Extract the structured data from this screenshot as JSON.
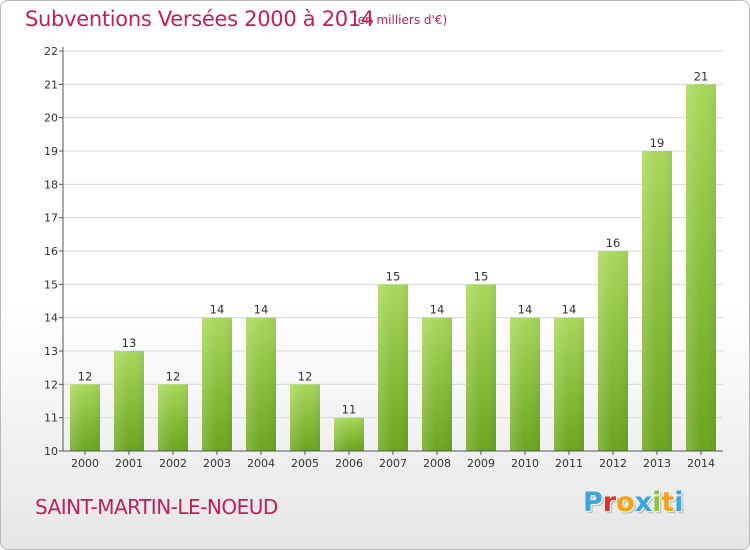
{
  "header": {
    "title": "Subventions Versées 2000 à 2014",
    "subtitle": "(en milliers d'€)"
  },
  "footer": {
    "commune": "SAINT-MARTIN-LE-NOEUD",
    "logo_letters": [
      {
        "char": "P",
        "color": "#3aa6dd"
      },
      {
        "char": "r",
        "color": "#e2322b"
      },
      {
        "char": "o",
        "color": "#f5a21b"
      },
      {
        "char": "x",
        "color": "#3aa6dd"
      },
      {
        "char": "i",
        "color": "#8cc63f"
      },
      {
        "char": "t",
        "color": "#f5a21b"
      },
      {
        "char": "i",
        "color": "#3aa6dd"
      }
    ]
  },
  "colors": {
    "bar_light": "#a8d85a",
    "bar_dark": "#6aa51e",
    "accent": "#c0205a",
    "grid": "#d8d8d8"
  },
  "chart_data": {
    "type": "bar",
    "categories": [
      "2000",
      "2001",
      "2002",
      "2003",
      "2004",
      "2005",
      "2006",
      "2007",
      "2008",
      "2009",
      "2010",
      "2011",
      "2012",
      "2013",
      "2014"
    ],
    "values": [
      12,
      13,
      12,
      14,
      14,
      12,
      11,
      15,
      14,
      15,
      14,
      14,
      16,
      19,
      21
    ],
    "ylim": [
      10,
      22
    ],
    "yticks": [
      10,
      11,
      12,
      13,
      14,
      15,
      16,
      17,
      18,
      19,
      20,
      21,
      22
    ],
    "grid": true,
    "legend": "none"
  }
}
